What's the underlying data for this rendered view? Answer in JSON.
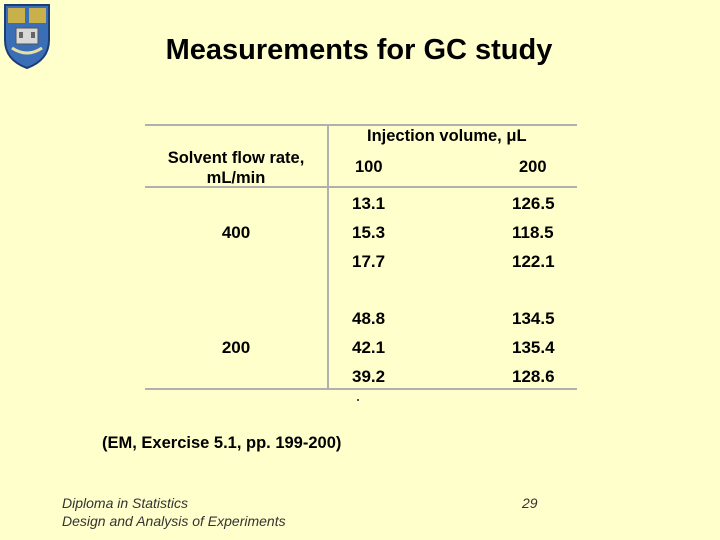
{
  "title": "Measurements for GC study",
  "table": {
    "row_header": "Solvent flow rate, mL/min",
    "col_header": "Injection volume, μL",
    "columns": [
      "100",
      "200"
    ],
    "groups": [
      {
        "flow_rate": "400",
        "rows": [
          [
            "13.1",
            "126.5"
          ],
          [
            "15.3",
            "118.5"
          ],
          [
            "17.7",
            "122.1"
          ]
        ]
      },
      {
        "flow_rate": "200",
        "rows": [
          [
            "48.8",
            "134.5"
          ],
          [
            "42.1",
            "135.4"
          ],
          [
            "39.2",
            "128.6"
          ]
        ]
      }
    ]
  },
  "reference": "(EM, Exercise 5.1, pp. 199-200)",
  "footer": {
    "line1": "Diploma in Statistics",
    "line2": "Design and Analysis of Experiments"
  },
  "page_number": "29",
  "colors": {
    "background": "#ffffcc",
    "grid": "#b0b0b0"
  }
}
